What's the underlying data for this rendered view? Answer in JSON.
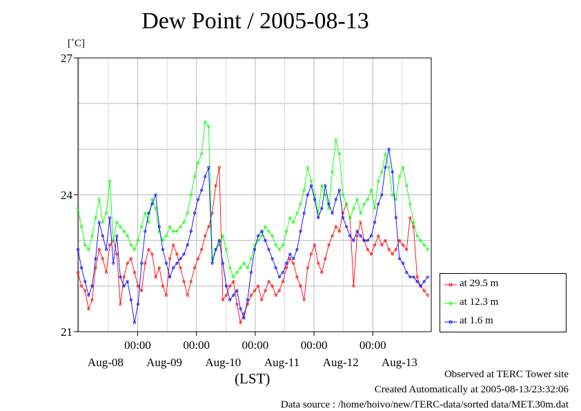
{
  "chart_data": {
    "type": "line",
    "title": "Dew Point / 2005-08-13",
    "ylabel": "[˚C]",
    "xlabel": "(LST)",
    "ylim": [
      21,
      27
    ],
    "y_ticks": [
      "21",
      "24",
      "27"
    ],
    "x_range_days": [
      "2005-08-07 21:00",
      "2005-08-13 23:00"
    ],
    "x_tick_times": [
      "00:00",
      "00:00",
      "00:00",
      "00:00",
      "00:00"
    ],
    "x_day_labels": [
      "Aug-08",
      "Aug-09",
      "Aug-10",
      "Aug-11",
      "Aug-12",
      "Aug-13"
    ],
    "grid": true,
    "legend_position": "right",
    "series": [
      {
        "name": "at 29.5 m",
        "color": "#ff0000",
        "times": [
          0.0,
          0.25,
          0.5,
          0.75,
          1.0,
          1.25,
          1.5,
          1.75,
          2.0,
          2.25,
          2.5,
          2.75,
          3.0,
          3.25,
          3.5,
          3.75,
          4.0,
          4.25,
          4.5,
          4.75,
          5.0,
          5.25,
          5.5,
          5.75,
          6.0,
          6.25,
          6.5,
          6.75,
          7.0,
          7.25,
          7.5,
          7.75,
          8.0,
          8.25,
          8.5,
          8.75,
          9.0,
          9.25,
          9.5,
          9.75,
          10.0,
          10.25,
          10.5,
          10.75,
          11.0,
          11.25,
          11.5,
          11.75,
          12.0,
          12.25,
          12.5,
          12.75,
          13.0,
          13.25,
          13.5,
          13.75,
          14.0,
          14.25,
          14.5,
          14.75,
          15.0,
          15.25,
          15.5,
          15.75,
          16.0,
          16.25,
          16.5,
          16.75,
          17.0,
          17.25,
          17.5,
          17.75,
          18.0,
          18.25,
          18.5,
          18.75,
          19.0,
          19.25,
          19.5,
          19.75,
          20.0,
          20.25,
          20.5,
          20.75,
          21.0,
          21.25,
          21.5,
          21.75,
          22.0,
          22.25,
          22.5,
          22.75,
          23.0,
          23.25,
          23.5,
          23.75,
          24.0,
          24.25,
          24.5,
          24.75
        ],
        "values": [
          22.3,
          22.0,
          21.9,
          21.5,
          21.7,
          22.4,
          22.8,
          22.6,
          22.3,
          22.9,
          23.0,
          22.7,
          21.6,
          22.2,
          22.5,
          22.6,
          22.3,
          22.0,
          21.9,
          22.5,
          22.8,
          22.7,
          22.2,
          22.4,
          22.0,
          21.8,
          22.6,
          22.9,
          22.7,
          22.4,
          22.1,
          21.8,
          22.1,
          22.4,
          22.6,
          22.8,
          23.1,
          23.3,
          23.6,
          24.2,
          24.6,
          21.7,
          21.8,
          22.0,
          22.1,
          21.6,
          21.2,
          21.4,
          21.6,
          21.8,
          21.9,
          22.0,
          21.7,
          21.9,
          22.1,
          22.0,
          21.8,
          21.9,
          22.1,
          22.4,
          22.6,
          22.5,
          22.2,
          22.0,
          21.7,
          22.4,
          22.7,
          22.9,
          22.5,
          22.3,
          22.6,
          22.9,
          23.1,
          23.3,
          23.2,
          23.6,
          23.8,
          23.5,
          22.0,
          23.1,
          23.4,
          23.0,
          22.8,
          22.7,
          22.9,
          23.1,
          22.9,
          23.0,
          22.8,
          22.7,
          22.8,
          23.0,
          22.9,
          22.8,
          23.5,
          23.3,
          22.2,
          22.0,
          21.9,
          21.8
        ]
      },
      {
        "name": "at 12.3 m",
        "color": "#00ff00",
        "times": [
          0.0,
          0.25,
          0.5,
          0.75,
          1.0,
          1.25,
          1.5,
          1.75,
          2.0,
          2.25,
          2.5,
          2.75,
          3.0,
          3.25,
          3.5,
          3.75,
          4.0,
          4.25,
          4.5,
          4.75,
          5.0,
          5.25,
          5.5,
          5.75,
          6.0,
          6.25,
          6.5,
          6.75,
          7.0,
          7.25,
          7.5,
          7.75,
          8.0,
          8.25,
          8.5,
          8.75,
          9.0,
          9.25,
          9.5,
          9.75,
          10.0,
          10.25,
          10.5,
          10.75,
          11.0,
          11.25,
          11.5,
          11.75,
          12.0,
          12.25,
          12.5,
          12.75,
          13.0,
          13.25,
          13.5,
          13.75,
          14.0,
          14.25,
          14.5,
          14.75,
          15.0,
          15.25,
          15.5,
          15.75,
          16.0,
          16.25,
          16.5,
          16.75,
          17.0,
          17.25,
          17.5,
          17.75,
          18.0,
          18.25,
          18.5,
          18.75,
          19.0,
          19.25,
          19.5,
          19.75,
          20.0,
          20.25,
          20.5,
          20.75,
          21.0,
          21.25,
          21.5,
          21.75,
          22.0,
          22.25,
          22.5,
          22.75,
          23.0,
          23.25,
          23.5,
          23.75,
          24.0,
          24.25,
          24.5,
          24.75
        ],
        "values": [
          23.7,
          23.3,
          22.9,
          22.8,
          23.1,
          23.5,
          23.9,
          23.4,
          23.6,
          24.3,
          23.0,
          23.4,
          23.3,
          23.2,
          23.1,
          22.9,
          22.8,
          23.0,
          23.3,
          23.6,
          23.4,
          23.9,
          23.7,
          23.2,
          23.0,
          23.1,
          23.3,
          23.2,
          23.2,
          23.3,
          23.4,
          23.6,
          24.0,
          24.4,
          24.7,
          24.9,
          25.6,
          25.5,
          22.6,
          22.8,
          22.9,
          23.1,
          22.8,
          22.4,
          22.2,
          22.3,
          22.4,
          22.5,
          22.4,
          22.6,
          22.9,
          23.0,
          23.1,
          23.3,
          23.2,
          23.1,
          22.9,
          22.8,
          22.9,
          23.2,
          23.5,
          23.4,
          23.6,
          23.8,
          24.1,
          24.6,
          24.3,
          24.0,
          23.6,
          24.2,
          24.0,
          23.7,
          24.5,
          25.2,
          24.9,
          24.0,
          23.8,
          23.5,
          23.7,
          23.9,
          23.6,
          23.8,
          23.9,
          24.1,
          23.7,
          24.3,
          24.5,
          24.9,
          24.6,
          24.0,
          23.9,
          24.4,
          24.6,
          24.2,
          23.8,
          23.4,
          23.1,
          23.0,
          22.9,
          22.8
        ]
      },
      {
        "name": "at 1.6 m",
        "color": "#0000ff",
        "times": [
          0.0,
          0.25,
          0.5,
          0.75,
          1.0,
          1.25,
          1.5,
          1.75,
          2.0,
          2.25,
          2.5,
          2.75,
          3.0,
          3.25,
          3.5,
          3.75,
          4.0,
          4.25,
          4.5,
          4.75,
          5.0,
          5.25,
          5.5,
          5.75,
          6.0,
          6.25,
          6.5,
          6.75,
          7.0,
          7.25,
          7.5,
          7.75,
          8.0,
          8.25,
          8.5,
          8.75,
          9.0,
          9.25,
          9.5,
          9.75,
          10.0,
          10.25,
          10.5,
          10.75,
          11.0,
          11.25,
          11.5,
          11.75,
          12.0,
          12.25,
          12.5,
          12.75,
          13.0,
          13.25,
          13.5,
          13.75,
          14.0,
          14.25,
          14.5,
          14.75,
          15.0,
          15.25,
          15.5,
          15.75,
          16.0,
          16.25,
          16.5,
          16.75,
          17.0,
          17.25,
          17.5,
          17.75,
          18.0,
          18.25,
          18.5,
          18.75,
          19.0,
          19.25,
          19.5,
          19.75,
          20.0,
          20.25,
          20.5,
          20.75,
          21.0,
          21.25,
          21.5,
          21.75,
          22.0,
          22.25,
          22.5,
          22.75,
          23.0,
          23.25,
          23.5,
          23.75,
          24.0,
          24.25,
          24.5,
          24.75
        ],
        "values": [
          22.8,
          22.4,
          22.1,
          21.8,
          22.0,
          22.6,
          23.4,
          23.1,
          22.8,
          23.5,
          22.5,
          23.1,
          22.2,
          22.0,
          22.1,
          21.7,
          21.2,
          21.6,
          22.5,
          23.2,
          23.6,
          23.8,
          24.0,
          23.3,
          22.8,
          22.5,
          22.2,
          22.4,
          22.5,
          22.6,
          22.7,
          22.9,
          23.2,
          23.6,
          23.9,
          24.1,
          24.4,
          24.6,
          22.5,
          22.8,
          23.0,
          22.5,
          22.0,
          21.7,
          21.8,
          21.9,
          21.5,
          21.3,
          21.7,
          22.3,
          22.8,
          23.1,
          23.2,
          23.0,
          22.8,
          22.6,
          22.4,
          22.2,
          22.3,
          22.5,
          22.7,
          22.6,
          22.8,
          23.2,
          23.6,
          24.0,
          24.2,
          23.9,
          23.5,
          23.7,
          24.2,
          23.8,
          23.6,
          23.9,
          24.1,
          23.5,
          23.3,
          23.1,
          23.0,
          23.2,
          23.1,
          23.0,
          23.0,
          23.1,
          23.4,
          23.8,
          24.0,
          24.6,
          25.0,
          24.5,
          23.5,
          22.6,
          22.5,
          22.3,
          22.2,
          22.2,
          22.1,
          22.0,
          22.1,
          22.2
        ]
      }
    ]
  },
  "footer": {
    "observed": "Observed at TERC Tower site",
    "created": "Created Automatically at 2005-08-13/23:32:06",
    "source": "Data source : /home/hoivo/new/TERC-data/sorted  data/MET.30m.dat"
  }
}
